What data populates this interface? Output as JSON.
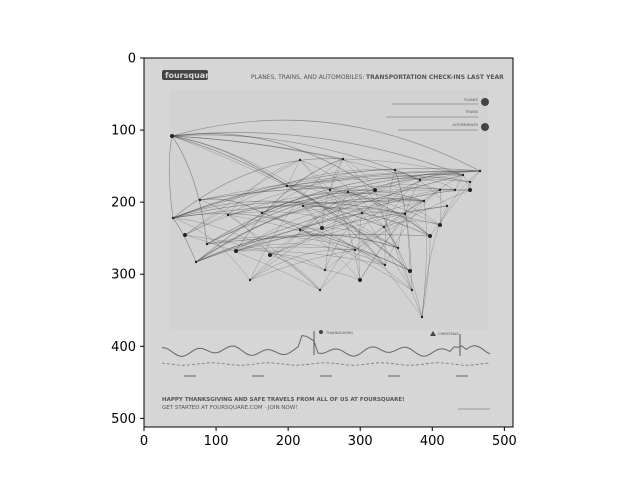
{
  "chart_data": {
    "type": "image",
    "xlim": [
      0,
      512
    ],
    "ylim": [
      512,
      0
    ],
    "x_ticks": [
      0,
      100,
      200,
      300,
      400,
      500
    ],
    "y_ticks": [
      0,
      100,
      200,
      300,
      400,
      500
    ],
    "grid": false,
    "image": {
      "colormap": "gray",
      "logo": "foursquare",
      "title_prefix": "PLANES, TRAINS, AND AUTOMOBILES:",
      "title_main": "TRANSPORTATION CHECK-INS LAST YEAR",
      "legend": [
        {
          "label": "PLANES",
          "icon": "plane-icon"
        },
        {
          "label": "TRAINS",
          "icon": "train-icon"
        },
        {
          "label": "AUTOMOBILES",
          "icon": "car-icon"
        }
      ],
      "timeline_markers": [
        "THANKSGIVING",
        "CHRISTMAS"
      ],
      "footer_line1": "HAPPY THANKSGIVING AND SAFE TRAVELS FROM ALL OF US AT FOURSQUARE!",
      "footer_line2": "GET STARTED AT FOURSQUARE.COM · JOIN NOW!"
    }
  }
}
